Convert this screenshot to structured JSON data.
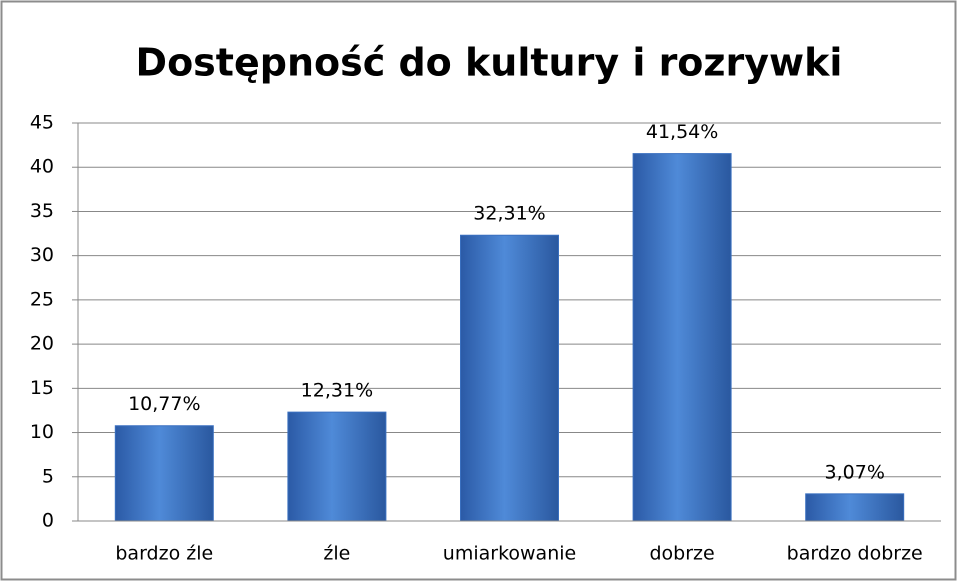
{
  "chart_data": {
    "type": "bar",
    "title": "Dostępność do kultury i rozrywki",
    "categories": [
      "bardzo źle",
      "źle",
      "umiarkowanie",
      "dobrze",
      "bardzo dobrze"
    ],
    "values": [
      10.77,
      12.31,
      32.31,
      41.54,
      3.07
    ],
    "value_labels": [
      "10,77%",
      "12,31%",
      "32,31%",
      "41,54%",
      "3,07%"
    ],
    "color": "#3a70c0",
    "ylim": [
      0,
      45
    ],
    "yticks": [
      0,
      5,
      10,
      15,
      20,
      25,
      30,
      35,
      40,
      45
    ],
    "grid": true
  }
}
